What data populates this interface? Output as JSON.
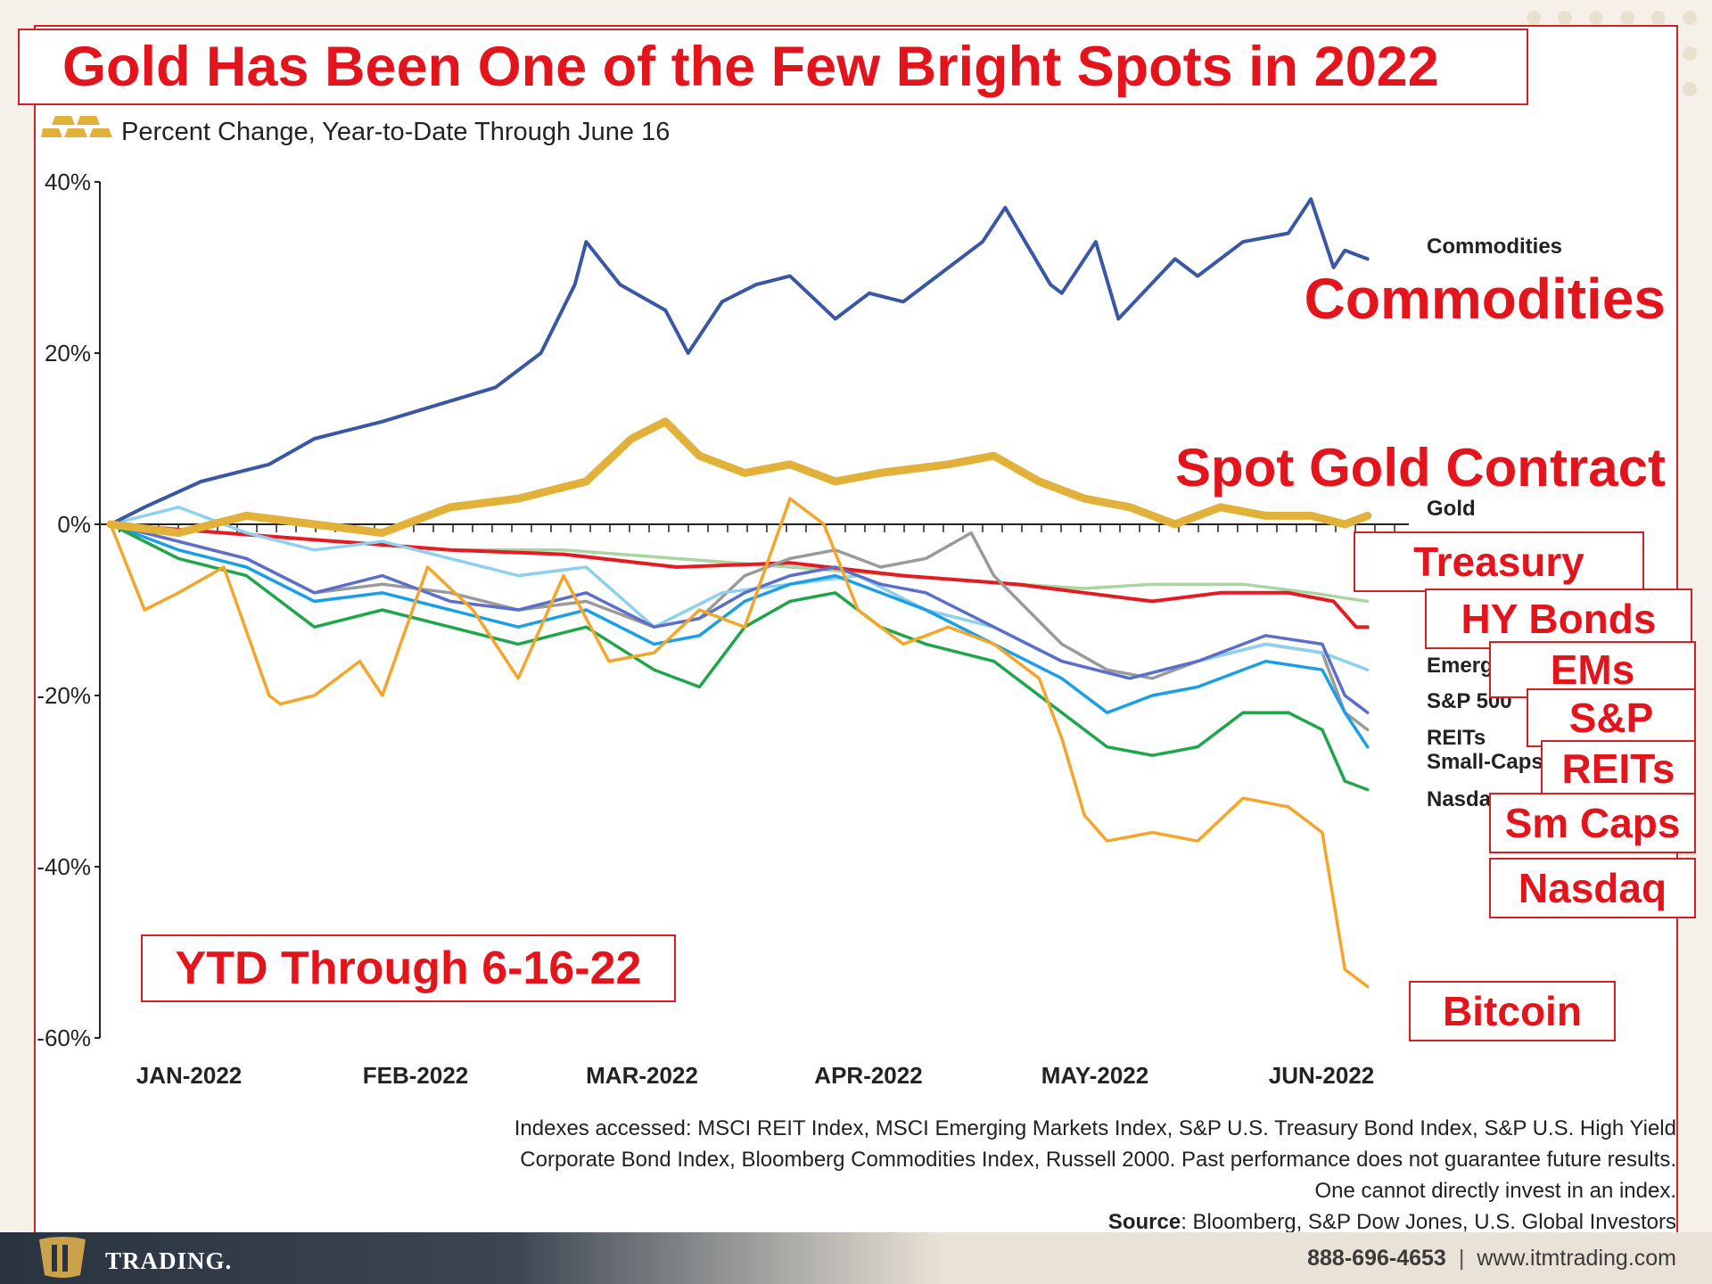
{
  "headline": "Gold Has Been One of the Few Bright Spots in 2022",
  "subtitle": "Percent Change, Year-to-Date Through June 16",
  "ytd_note": "YTD Through 6-16-22",
  "callouts": {
    "commodities": "Commodities",
    "gold": "Spot Gold Contract",
    "treasury": "Treasury",
    "hy_bonds": "HY Bonds",
    "ems": "EMs",
    "sp": "S&P",
    "reits": "REITs",
    "small_caps": "Sm Caps",
    "nasdaq": "Nasdaq",
    "bitcoin": "Bitcoin"
  },
  "notes": {
    "line1": "Indexes accessed: MSCI REIT Index, MSCI Emerging Markets Index, S&P U.S. Treasury Bond Index, S&P U.S. High Yield",
    "line2": "Corporate Bond Index, Bloomberg Commodities Index, Russell 2000. Past performance does not guarantee future results.",
    "line3": "One cannot directly invest in an index.",
    "source_label": "Source",
    "source_text": ": Bloomberg, S&P Dow Jones, U.S. Global Investors"
  },
  "footer": {
    "brand": "TRADING.",
    "phone": "888-696-4653",
    "separator": "|",
    "website": "www.itmtrading.com"
  },
  "colors": {
    "accent_red": "#e3141c",
    "commodities": "#3a57a5",
    "gold": "#e2b13a",
    "treasury": "#a8d5a0",
    "hy_bonds": "#e51b24",
    "emerging": "#8ed0ef",
    "sp500": "#5b6fc8",
    "reits": "#1a9fe6",
    "small_caps": "#1fa64a",
    "nasdaq": "#9a9a9a",
    "bitcoin": "#f4a52a"
  },
  "chart_data": {
    "type": "line",
    "title": "",
    "xlabel": "",
    "ylabel": "",
    "ylim": [
      -60,
      40
    ],
    "yticks": [
      "40%",
      "20%",
      "0%",
      "-20%",
      "-40%",
      "-60%"
    ],
    "ytick_values": [
      40,
      20,
      0,
      -20,
      -40,
      -60
    ],
    "xticks": [
      "JAN-2022",
      "FEB-2022",
      "MAR-2022",
      "APR-2022",
      "MAY-2022",
      "JUN-2022"
    ],
    "xrange": [
      0,
      5.55
    ],
    "grid": false,
    "series": [
      {
        "name": "Commodities",
        "key": "commodities",
        "x": [
          0,
          0.15,
          0.4,
          0.7,
          0.9,
          1.2,
          1.45,
          1.7,
          1.9,
          2.05,
          2.1,
          2.25,
          2.45,
          2.55,
          2.7,
          2.85,
          3.0,
          3.2,
          3.35,
          3.5,
          3.7,
          3.85,
          3.95,
          4.15,
          4.2,
          4.35,
          4.45,
          4.7,
          4.8,
          5.0,
          5.2,
          5.3,
          5.4,
          5.45,
          5.55
        ],
        "values": [
          0,
          2,
          5,
          7,
          10,
          12,
          14,
          16,
          20,
          28,
          33,
          28,
          25,
          20,
          26,
          28,
          29,
          24,
          27,
          26,
          30,
          33,
          37,
          28,
          27,
          33,
          24,
          31,
          29,
          33,
          34,
          38,
          30,
          32,
          31
        ]
      },
      {
        "name": "Gold",
        "key": "gold",
        "x": [
          0,
          0.3,
          0.6,
          0.9,
          1.2,
          1.5,
          1.8,
          2.1,
          2.3,
          2.45,
          2.6,
          2.8,
          3.0,
          3.2,
          3.4,
          3.7,
          3.9,
          4.1,
          4.3,
          4.5,
          4.7,
          4.9,
          5.1,
          5.3,
          5.45,
          5.55
        ],
        "values": [
          0,
          -1,
          1,
          0,
          -1,
          2,
          3,
          5,
          10,
          12,
          8,
          6,
          7,
          5,
          6,
          7,
          8,
          5,
          3,
          2,
          0,
          2,
          1,
          1,
          0,
          1
        ]
      },
      {
        "name": "Treasury",
        "key": "treasury",
        "x": [
          0,
          0.5,
          1.0,
          1.5,
          2.0,
          2.5,
          3.0,
          3.5,
          4.0,
          4.3,
          4.6,
          5.0,
          5.3,
          5.55
        ],
        "values": [
          0,
          -1,
          -2,
          -3,
          -3,
          -4,
          -5,
          -6,
          -7,
          -7.5,
          -7,
          -7,
          -8,
          -9
        ]
      },
      {
        "name": "HY Bonds",
        "key": "hy_bonds",
        "x": [
          0,
          0.5,
          1.0,
          1.5,
          2.0,
          2.5,
          3.0,
          3.5,
          4.0,
          4.3,
          4.6,
          4.9,
          5.2,
          5.4,
          5.5,
          5.55
        ],
        "values": [
          0,
          -1,
          -2,
          -3,
          -3.5,
          -5,
          -4.5,
          -6,
          -7,
          -8,
          -9,
          -8,
          -8,
          -9,
          -12,
          -12
        ]
      },
      {
        "name": "Emerging Markets",
        "key": "emerging",
        "x": [
          0,
          0.3,
          0.6,
          0.9,
          1.2,
          1.5,
          1.8,
          2.1,
          2.4,
          2.7,
          3.0,
          3.3,
          3.6,
          3.9,
          4.2,
          4.5,
          4.8,
          5.1,
          5.35,
          5.55
        ],
        "values": [
          0,
          2,
          -1,
          -3,
          -2,
          -4,
          -6,
          -5,
          -12,
          -8,
          -7,
          -6,
          -10,
          -12,
          -16,
          -18,
          -16,
          -14,
          -15,
          -17
        ]
      },
      {
        "name": "S&P 500",
        "key": "sp500",
        "x": [
          0,
          0.3,
          0.6,
          0.9,
          1.2,
          1.5,
          1.8,
          2.1,
          2.4,
          2.6,
          2.8,
          3.0,
          3.2,
          3.4,
          3.6,
          3.9,
          4.2,
          4.5,
          4.8,
          5.1,
          5.35,
          5.45,
          5.55
        ],
        "values": [
          0,
          -2,
          -4,
          -8,
          -6,
          -9,
          -10,
          -8,
          -12,
          -11,
          -8,
          -6,
          -5,
          -7,
          -8,
          -12,
          -16,
          -18,
          -16,
          -13,
          -14,
          -20,
          -22
        ]
      },
      {
        "name": "REITs",
        "key": "reits",
        "x": [
          0,
          0.3,
          0.6,
          0.9,
          1.2,
          1.5,
          1.8,
          2.1,
          2.4,
          2.6,
          2.8,
          3.0,
          3.2,
          3.4,
          3.6,
          3.9,
          4.2,
          4.4,
          4.6,
          4.8,
          5.1,
          5.35,
          5.45,
          5.55
        ],
        "values": [
          0,
          -3,
          -5,
          -9,
          -8,
          -10,
          -12,
          -10,
          -14,
          -13,
          -9,
          -7,
          -6,
          -8,
          -10,
          -14,
          -18,
          -22,
          -20,
          -19,
          -16,
          -17,
          -22,
          -26
        ]
      },
      {
        "name": "Small-Caps",
        "key": "small_caps",
        "x": [
          0,
          0.3,
          0.6,
          0.9,
          1.2,
          1.5,
          1.8,
          2.1,
          2.4,
          2.6,
          2.8,
          3.0,
          3.2,
          3.4,
          3.6,
          3.9,
          4.2,
          4.4,
          4.6,
          4.8,
          5.0,
          5.2,
          5.35,
          5.45,
          5.55
        ],
        "values": [
          0,
          -4,
          -6,
          -12,
          -10,
          -12,
          -14,
          -12,
          -17,
          -19,
          -12,
          -9,
          -8,
          -12,
          -14,
          -16,
          -22,
          -26,
          -27,
          -26,
          -22,
          -22,
          -24,
          -30,
          -31
        ]
      },
      {
        "name": "Nasdaq",
        "key": "nasdaq",
        "x": [
          0,
          0.3,
          0.6,
          0.9,
          1.2,
          1.5,
          1.8,
          2.1,
          2.4,
          2.6,
          2.8,
          3.0,
          3.2,
          3.4,
          3.6,
          3.8,
          3.9,
          4.2,
          4.4,
          4.6,
          4.8,
          5.1,
          5.35,
          5.45,
          5.55
        ],
        "values": [
          0,
          -2,
          -4,
          -8,
          -7,
          -8,
          -10,
          -9,
          -12,
          -11,
          -6,
          -4,
          -3,
          -5,
          -4,
          -1,
          -6,
          -14,
          -17,
          -18,
          -16,
          -14,
          -15,
          -22,
          -24
        ]
      },
      {
        "name": "Bitcoin",
        "key": "bitcoin",
        "x": [
          0,
          0.15,
          0.3,
          0.5,
          0.7,
          0.75,
          0.9,
          1.1,
          1.2,
          1.4,
          1.6,
          1.8,
          2.0,
          2.2,
          2.4,
          2.6,
          2.8,
          3.0,
          3.15,
          3.3,
          3.5,
          3.7,
          3.9,
          4.1,
          4.2,
          4.3,
          4.4,
          4.6,
          4.8,
          5.0,
          5.2,
          5.35,
          5.45,
          5.55
        ],
        "values": [
          0,
          -10,
          -8,
          -5,
          -20,
          -21,
          -20,
          -16,
          -20,
          -5,
          -10,
          -18,
          -6,
          -16,
          -15,
          -10,
          -12,
          3,
          0,
          -10,
          -14,
          -12,
          -14,
          -18,
          -25,
          -34,
          -37,
          -36,
          -37,
          -32,
          -33,
          -36,
          -52,
          -54
        ]
      }
    ],
    "end_labels": [
      "Commodities",
      "Gold",
      "Emerg",
      "S&P 500",
      "REITs",
      "Small-Caps",
      "Nasda"
    ]
  }
}
